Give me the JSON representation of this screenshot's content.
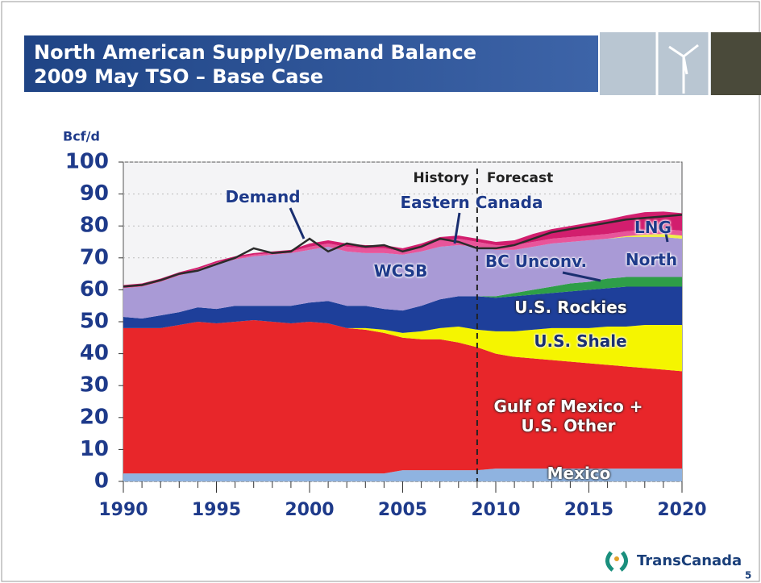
{
  "chart_data": {
    "type": "stacked_area",
    "title": [
      "North American Supply/Demand Balance",
      "2009 May TSO – Base Case"
    ],
    "y_label": "Bcf/d",
    "x": [
      1990,
      1991,
      1992,
      1993,
      1994,
      1995,
      1996,
      1997,
      1998,
      1999,
      2000,
      2001,
      2002,
      2003,
      2004,
      2005,
      2006,
      2007,
      2008,
      2009,
      2010,
      2011,
      2012,
      2013,
      2014,
      2015,
      2016,
      2017,
      2018,
      2019,
      2020
    ],
    "xlim": [
      1990,
      2020
    ],
    "xticks": [
      1990,
      1995,
      2000,
      2005,
      2010,
      2015,
      2020
    ],
    "ylim": [
      0,
      100
    ],
    "yticks": [
      0,
      10,
      20,
      30,
      40,
      50,
      60,
      70,
      80,
      90,
      100
    ],
    "grid": true,
    "series": [
      {
        "name": "Mexico",
        "color": "#8fb3e0",
        "values": [
          2.5,
          2.5,
          2.5,
          2.5,
          2.5,
          2.5,
          2.5,
          2.5,
          2.5,
          2.5,
          2.5,
          2.5,
          2.5,
          2.5,
          2.5,
          3.5,
          3.5,
          3.5,
          3.5,
          3.5,
          4,
          4,
          4,
          4,
          4,
          4,
          4,
          4,
          4,
          4,
          4
        ]
      },
      {
        "name": "Gulf of Mexico + U.S. Other",
        "color": "#e8262a",
        "values": [
          45.5,
          45.5,
          45.5,
          46.5,
          47.5,
          47,
          47.5,
          48,
          47.5,
          47,
          47.5,
          47,
          45.5,
          45,
          44,
          41.5,
          41,
          41,
          40,
          38.5,
          36,
          35,
          34.5,
          34,
          33.5,
          33,
          32.5,
          32,
          31.5,
          31,
          30.5
        ]
      },
      {
        "name": "U.S. Shale",
        "color": "#f5f500",
        "values": [
          0,
          0,
          0,
          0,
          0,
          0,
          0,
          0,
          0,
          0,
          0,
          0,
          0,
          0.5,
          1,
          1.5,
          2.5,
          3.5,
          5,
          5.5,
          7,
          8,
          9,
          10,
          10.5,
          11,
          12,
          12.5,
          13.5,
          14,
          14.5
        ]
      },
      {
        "name": "U.S. Rockies",
        "color": "#1e3f9a",
        "values": [
          3.5,
          3,
          4,
          4,
          4.5,
          4.5,
          5,
          4.5,
          5,
          5.5,
          6,
          7,
          7,
          7,
          6.5,
          7,
          8,
          9,
          9.5,
          10.5,
          10.5,
          11,
          11,
          11,
          11.5,
          12,
          12,
          12.5,
          12,
          12,
          12
        ]
      },
      {
        "name": "BC Unconv.",
        "color": "#2e9e48",
        "values": [
          0,
          0,
          0,
          0,
          0,
          0,
          0,
          0,
          0,
          0,
          0,
          0,
          0,
          0,
          0,
          0,
          0,
          0,
          0,
          0,
          0.5,
          1,
          1.5,
          2,
          2.5,
          2.5,
          3,
          3,
          3,
          3,
          3
        ]
      },
      {
        "name": "WCSB",
        "color": "#a99ad6",
        "values": [
          9,
          10,
          10.5,
          11.5,
          11.5,
          14,
          14.5,
          15.5,
          16,
          16.5,
          16.5,
          17,
          17,
          16.5,
          17.5,
          17.5,
          17,
          16.5,
          16,
          15.5,
          14.5,
          13.5,
          13.5,
          13.5,
          13,
          13,
          12.5,
          12.5,
          12.5,
          12.5,
          12
        ]
      },
      {
        "name": "North",
        "color": "#eef04a",
        "values": [
          0,
          0,
          0,
          0,
          0,
          0,
          0,
          0,
          0,
          0,
          0,
          0,
          0,
          0,
          0,
          0,
          0,
          0,
          0,
          0,
          0,
          0,
          0,
          0,
          0,
          0,
          0,
          0.3,
          0.8,
          1,
          1
        ]
      },
      {
        "name": "Eastern Canada",
        "color": "#e8559a",
        "values": [
          0.5,
          0.5,
          0.5,
          0.5,
          0.5,
          0.5,
          0.5,
          0.5,
          0.5,
          0.5,
          1,
          1,
          1.5,
          1.5,
          1.5,
          1,
          1.5,
          2,
          2,
          1.5,
          1.5,
          1.5,
          1.5,
          1.5,
          1.5,
          1.5,
          1.5,
          1.5,
          1.5,
          1.5,
          1.5
        ]
      },
      {
        "name": "LNG",
        "color": "#d21e6e",
        "values": [
          0.5,
          0.5,
          0.5,
          0.5,
          0.5,
          0.5,
          0.5,
          0.5,
          0.5,
          0.5,
          1,
          1,
          1,
          1,
          1,
          1,
          1,
          1,
          1,
          1,
          1,
          1.5,
          2.5,
          3,
          3.5,
          4,
          4.5,
          5,
          5.5,
          5.5,
          5.5
        ]
      }
    ],
    "demand": {
      "name": "Demand",
      "color": "#2b2b2b",
      "values": [
        61,
        61.5,
        63,
        65,
        66,
        68,
        70,
        73,
        71.5,
        72,
        76,
        72,
        74.5,
        73.5,
        74,
        72,
        73.5,
        76,
        75,
        73,
        73,
        74,
        76,
        78,
        79,
        80,
        81,
        82,
        82.5,
        83,
        83.5
      ]
    },
    "divider_x": 2009,
    "annotations": [
      "History",
      "Forecast"
    ]
  },
  "page_number": "5",
  "logo": "TransCanada"
}
